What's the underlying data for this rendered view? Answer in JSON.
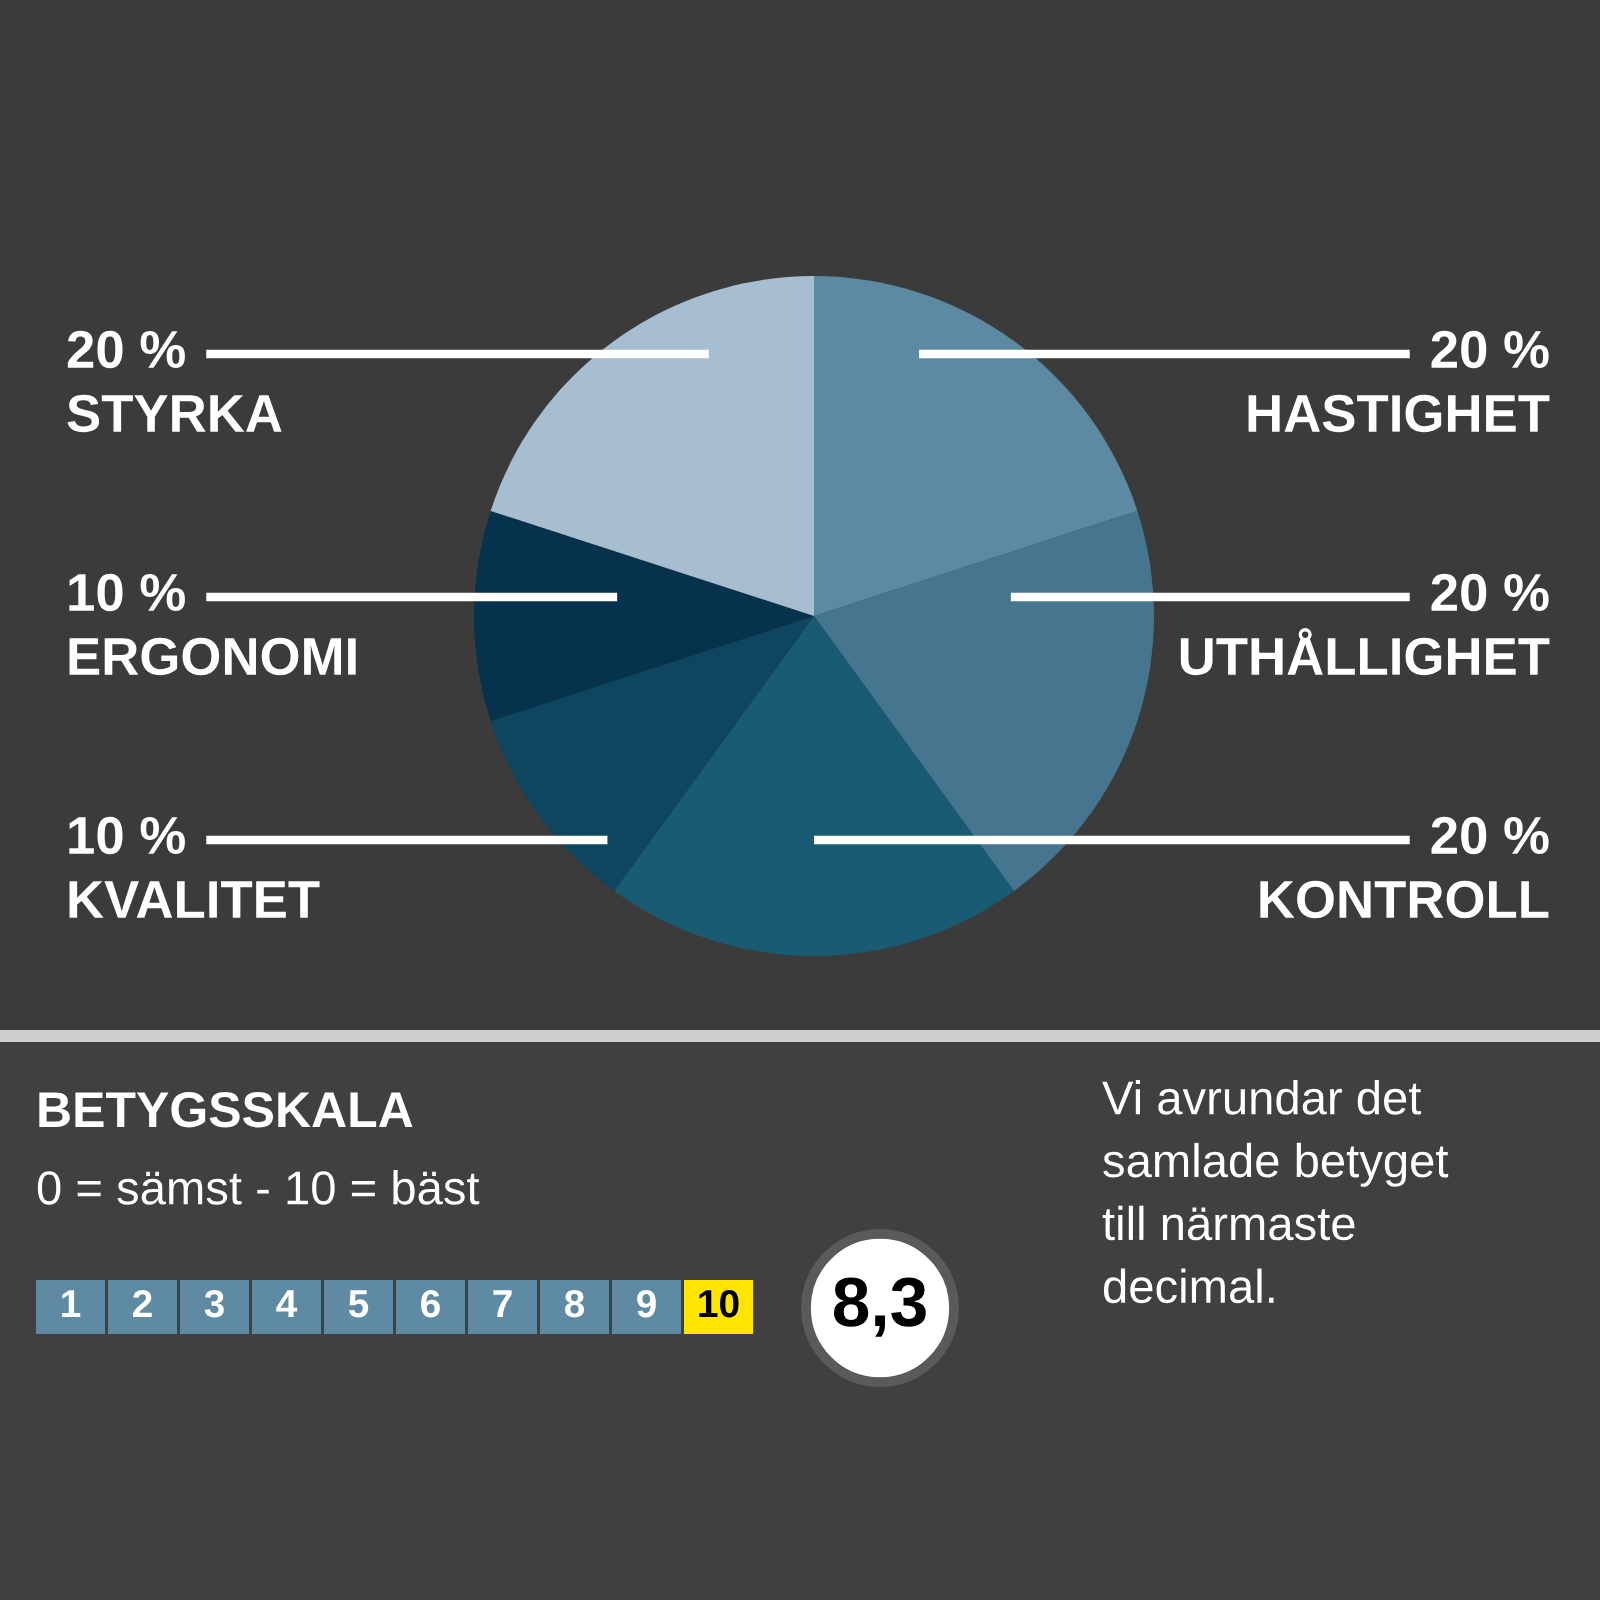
{
  "chart_data": {
    "type": "pie",
    "categories": [
      "HASTIGHET",
      "UTHÅLLIGHET",
      "KONTROLL",
      "KVALITET",
      "ERGONOMI",
      "STYRKA"
    ],
    "values": [
      20,
      20,
      20,
      10,
      10,
      20
    ],
    "value_labels": [
      "20 %",
      "20 %",
      "20 %",
      "10 %",
      "10 %",
      "20 %"
    ],
    "colors": [
      "#5e89a2",
      "#46758f",
      "#195b73",
      "#0e4660",
      "#06324d",
      "#a6bed0"
    ],
    "annotations": [
      "BETYGSSKALA",
      "0 = sämst - 10 = bäst",
      "1",
      "2",
      "3",
      "4",
      "5",
      "6",
      "7",
      "8",
      "9",
      "10",
      "8,3",
      "Vi avrundar det\nsamlade betyget\ntill närmaste\ndecimal."
    ]
  }
}
